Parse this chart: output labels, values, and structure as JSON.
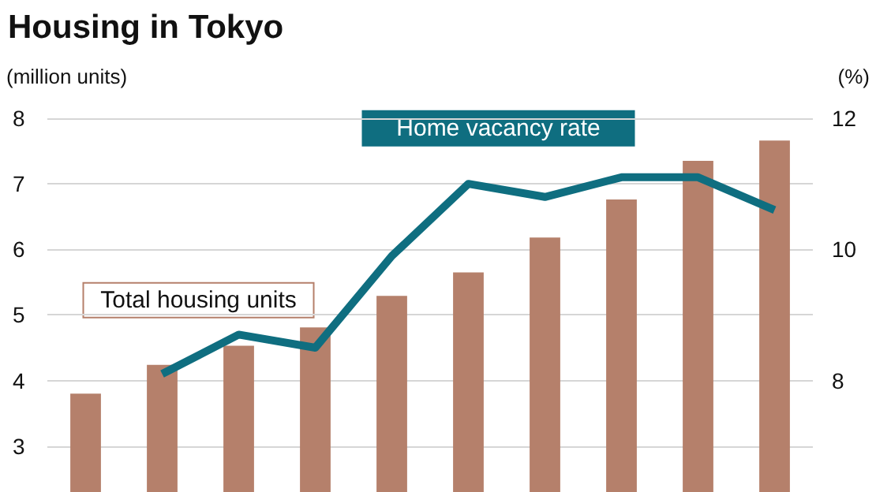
{
  "chart_data": {
    "type": "bar",
    "title": "Housing in Tokyo",
    "ylabel": "(million units)",
    "y2label": "(%)",
    "categories": [
      null,
      null,
      null,
      null,
      null,
      null,
      null,
      null,
      null,
      null
    ],
    "series": [
      {
        "name": "Total housing units",
        "color": "#b5806b",
        "values": [
          3.8,
          4.24,
          4.53,
          4.81,
          5.29,
          5.65,
          6.18,
          6.76,
          7.35,
          7.66
        ]
      },
      {
        "name": "Home vacancy rate",
        "type": "line",
        "axis": "y2",
        "color": "#0f6e80",
        "values": [
          null,
          8.1,
          8.7,
          8.5,
          9.9,
          11.0,
          10.8,
          11.1,
          11.1,
          10.6
        ]
      }
    ],
    "ylim": [
      2.3,
      8
    ],
    "yticks": [
      3,
      4,
      5,
      6,
      7,
      8
    ],
    "y2lim": [
      6.3,
      12
    ],
    "y2ticks": [
      8,
      10,
      12
    ],
    "grid": "y",
    "legend": false,
    "marker": "none",
    "line_style": "solid",
    "tick_labels": "y"
  }
}
